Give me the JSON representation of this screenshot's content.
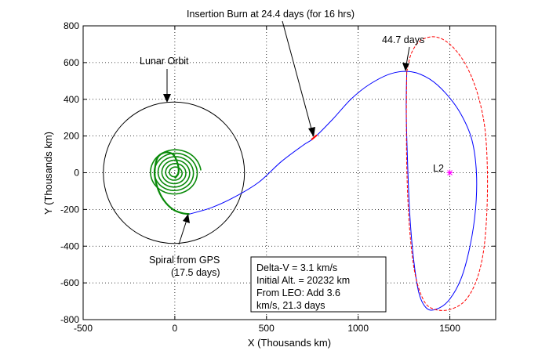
{
  "chart_data": {
    "type": "line",
    "title": "",
    "xlabel": "X (Thousands km)",
    "ylabel": "Y (Thousands km)",
    "xlim": [
      -500,
      1750
    ],
    "ylim": [
      -800,
      800
    ],
    "xticks": [
      -500,
      0,
      500,
      1000,
      1500
    ],
    "yticks": [
      800,
      600,
      400,
      200,
      0,
      -200,
      -400,
      -600,
      -800
    ],
    "grid": true,
    "series": [
      {
        "role": "lunar-orbit",
        "color": "#000000",
        "shape": "circle",
        "center": [
          -5,
          0
        ],
        "radius": 385
      },
      {
        "role": "spiral",
        "color": "#0a8a0a",
        "x": [
          80,
          40,
          -10,
          -60,
          -95,
          -110,
          -95,
          -55,
          -10,
          15,
          20,
          0
        ],
        "y": [
          -225,
          -220,
          -200,
          -150,
          -80,
          0,
          80,
          110,
          100,
          50,
          0,
          -30
        ]
      },
      {
        "role": "transfer",
        "color": "#0000ff",
        "x": [
          80,
          200,
          330,
          460,
          580,
          700,
          760,
          860,
          960,
          1060,
          1180,
          1290,
          1390,
          1480,
          1560,
          1620,
          1645,
          1640,
          1610,
          1560,
          1490,
          1420,
          1370,
          1330,
          1300,
          1280,
          1268,
          1262,
          1265
        ],
        "y": [
          -225,
          -190,
          -130,
          -50,
          60,
          150,
          190,
          290,
          400,
          480,
          540,
          550,
          510,
          430,
          320,
          180,
          0,
          -200,
          -400,
          -580,
          -700,
          -745,
          -735,
          -650,
          -450,
          -200,
          100,
          350,
          550
        ]
      },
      {
        "role": "insertion-burn",
        "color": "#ff0000",
        "x": [
          745,
          775
        ],
        "y": [
          180,
          205
        ]
      },
      {
        "role": "halo-orbit",
        "color": "#ff0000",
        "x": [
          1265,
          1290,
          1340,
          1420,
          1500,
          1580,
          1645,
          1690,
          1705,
          1700,
          1680,
          1640,
          1580,
          1500,
          1420,
          1360,
          1310,
          1280,
          1266,
          1263,
          1265
        ],
        "y": [
          550,
          650,
          720,
          740,
          700,
          600,
          450,
          250,
          0,
          -250,
          -450,
          -600,
          -700,
          -745,
          -745,
          -700,
          -550,
          -300,
          0,
          300,
          550
        ]
      },
      {
        "role": "L2",
        "color": "#ff00ff",
        "marker": "*",
        "x": [
          1500
        ],
        "y": [
          0
        ],
        "label": "L2"
      }
    ],
    "annotations": [
      {
        "text": "Insertion Burn at 24.4 days (for 16 hrs)"
      },
      {
        "text": "44.7 days"
      },
      {
        "text": "Lunar Orbit"
      },
      {
        "text": "Spiral from GPS"
      },
      {
        "text": "(17.5 days)"
      }
    ],
    "textbox": [
      "Delta-V = 3.1 km/s",
      "Initial Alt. = 20232 km",
      "From LEO: Add 3.6",
      "km/s, 21.3 days"
    ]
  }
}
